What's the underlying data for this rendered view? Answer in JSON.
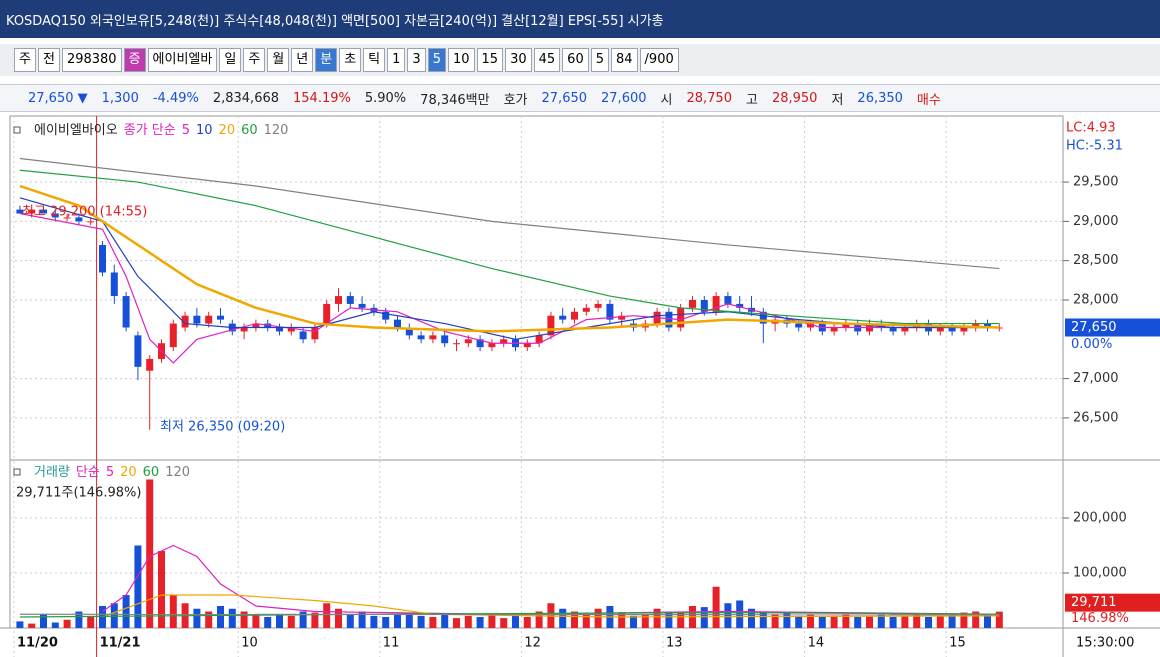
{
  "title_bar": {
    "text": "KOSDAQ150 외국인보유[5,248(천)] 주식수[48,048(천)] 액면[500] 자본금[240(억)] 결산[12월] EPS[-55] 시가총"
  },
  "toolbar": {
    "items": [
      "주",
      "전",
      "298380",
      "증",
      "에이비엘바",
      "일",
      "주",
      "월",
      "년",
      "분",
      "초",
      "틱",
      "1",
      "3",
      "5",
      "10",
      "15",
      "30",
      "45",
      "60",
      "5",
      "84",
      "/900"
    ]
  },
  "quote_bar": {
    "items": [
      "27,650 ▼",
      "1,300",
      "-4.49%",
      "2,834,668",
      "154.19%",
      "5.90%",
      "78,346백만",
      "호가",
      "27,650",
      "27,600",
      "시",
      "28,750",
      "고",
      "28,950",
      "저",
      "26,350",
      "매수"
    ]
  },
  "price_chart": {
    "type": "candlestick",
    "name": "에이비엘바이오",
    "ma_label": "종가 단순",
    "ylim": [
      25990,
      30315
    ],
    "yticks": [
      {
        "value": 29500,
        "label": "29,500"
      },
      {
        "value": 29000,
        "label": "29,000"
      },
      {
        "value": 28500,
        "label": "28,500"
      },
      {
        "value": 28000,
        "label": "28,000"
      },
      {
        "value": 27000,
        "label": "27,000"
      },
      {
        "value": 26500,
        "label": "26,500"
      }
    ],
    "lc": "LC:4.93",
    "hc": "HC:-5.31",
    "current": {
      "value": 27650,
      "label": "27,650"
    },
    "current_change": "0.00%",
    "up_color": "#e8202a",
    "down_color": "#1650d8",
    "high_note": "최고 29,200 (14:55)",
    "low_note": "최저 26,350 (09:20)",
    "candles": [
      [
        29150,
        29200,
        29100,
        29100
      ],
      [
        29100,
        29150,
        29050,
        29150
      ],
      [
        29150,
        29200,
        29100,
        29100
      ],
      [
        29100,
        29150,
        29000,
        29050
      ],
      [
        29050,
        29100,
        29000,
        29050
      ],
      [
        29050,
        29100,
        28950,
        29000
      ],
      [
        29000,
        29050,
        28950,
        29000
      ],
      [
        28700,
        28750,
        28300,
        28350
      ],
      [
        28350,
        28450,
        27950,
        28050
      ],
      [
        28050,
        28100,
        27600,
        27650
      ],
      [
        27550,
        27600,
        26980,
        27150
      ],
      [
        27100,
        27300,
        26350,
        27250
      ],
      [
        27250,
        27500,
        27200,
        27450
      ],
      [
        27400,
        27750,
        27350,
        27700
      ],
      [
        27650,
        27850,
        27600,
        27800
      ],
      [
        27800,
        27900,
        27650,
        27700
      ],
      [
        27700,
        27850,
        27650,
        27800
      ],
      [
        27800,
        27900,
        27700,
        27750
      ],
      [
        27700,
        27750,
        27550,
        27600
      ],
      [
        27600,
        27700,
        27500,
        27650
      ],
      [
        27650,
        27750,
        27600,
        27700
      ],
      [
        27700,
        27750,
        27600,
        27650
      ],
      [
        27650,
        27700,
        27550,
        27600
      ],
      [
        27600,
        27700,
        27550,
        27650
      ],
      [
        27600,
        27650,
        27450,
        27500
      ],
      [
        27500,
        27700,
        27450,
        27650
      ],
      [
        27700,
        28000,
        27650,
        27950
      ],
      [
        27950,
        28150,
        27850,
        28050
      ],
      [
        28050,
        28100,
        27900,
        27950
      ],
      [
        27950,
        28050,
        27850,
        27900
      ],
      [
        27900,
        27950,
        27800,
        27850
      ],
      [
        27850,
        27900,
        27700,
        27750
      ],
      [
        27750,
        27800,
        27600,
        27650
      ],
      [
        27650,
        27700,
        27500,
        27550
      ],
      [
        27550,
        27600,
        27450,
        27500
      ],
      [
        27500,
        27600,
        27450,
        27550
      ],
      [
        27550,
        27600,
        27400,
        27450
      ],
      [
        27450,
        27500,
        27350,
        27450
      ],
      [
        27450,
        27550,
        27400,
        27500
      ],
      [
        27500,
        27550,
        27350,
        27400
      ],
      [
        27400,
        27500,
        27350,
        27450
      ],
      [
        27450,
        27550,
        27400,
        27500
      ],
      [
        27500,
        27550,
        27350,
        27400
      ],
      [
        27400,
        27500,
        27350,
        27450
      ],
      [
        27450,
        27600,
        27400,
        27550
      ],
      [
        27550,
        27850,
        27500,
        27800
      ],
      [
        27800,
        27900,
        27700,
        27750
      ],
      [
        27750,
        27900,
        27700,
        27850
      ],
      [
        27850,
        27950,
        27800,
        27900
      ],
      [
        27900,
        28000,
        27850,
        27950
      ],
      [
        27950,
        28000,
        27700,
        27750
      ],
      [
        27750,
        27850,
        27650,
        27800
      ],
      [
        27700,
        27750,
        27600,
        27650
      ],
      [
        27650,
        27750,
        27600,
        27700
      ],
      [
        27700,
        27900,
        27650,
        27850
      ],
      [
        27850,
        27900,
        27600,
        27650
      ],
      [
        27650,
        27950,
        27600,
        27900
      ],
      [
        27900,
        28050,
        27850,
        28000
      ],
      [
        28000,
        28050,
        27800,
        27850
      ],
      [
        27850,
        28100,
        27800,
        28050
      ],
      [
        28050,
        28100,
        27900,
        27950
      ],
      [
        27950,
        28050,
        27850,
        27900
      ],
      [
        27900,
        28050,
        27800,
        27850
      ],
      [
        27850,
        27900,
        27450,
        27700
      ],
      [
        27700,
        27800,
        27600,
        27750
      ],
      [
        27750,
        27800,
        27650,
        27700
      ],
      [
        27700,
        27750,
        27600,
        27650
      ],
      [
        27650,
        27750,
        27600,
        27700
      ],
      [
        27700,
        27750,
        27550,
        27600
      ],
      [
        27600,
        27700,
        27550,
        27650
      ],
      [
        27650,
        27750,
        27600,
        27700
      ],
      [
        27700,
        27750,
        27550,
        27600
      ],
      [
        27600,
        27750,
        27550,
        27700
      ],
      [
        27700,
        27750,
        27600,
        27650
      ],
      [
        27650,
        27700,
        27550,
        27600
      ],
      [
        27600,
        27700,
        27550,
        27650
      ],
      [
        27650,
        27750,
        27600,
        27700
      ],
      [
        27700,
        27750,
        27550,
        27600
      ],
      [
        27600,
        27700,
        27550,
        27650
      ],
      [
        27650,
        27700,
        27550,
        27600
      ],
      [
        27600,
        27700,
        27550,
        27650
      ],
      [
        27650,
        27750,
        27600,
        27700
      ],
      [
        27700,
        27750,
        27600,
        27650
      ],
      [
        27650,
        27700,
        27600,
        27650
      ]
    ],
    "ma": [
      {
        "name": "5",
        "color": "#e020c0",
        "x": [
          0,
          7,
          9,
          11,
          13,
          15,
          20,
          25,
          28,
          32,
          36,
          40,
          44,
          48,
          52,
          56,
          60,
          64,
          68,
          74,
          83
        ],
        "values": [
          29100,
          28900,
          28300,
          27500,
          27200,
          27500,
          27700,
          27600,
          27900,
          27850,
          27600,
          27450,
          27450,
          27750,
          27800,
          27750,
          27950,
          27800,
          27650,
          27650,
          27650
        ]
      },
      {
        "name": "10",
        "color": "#2040c0",
        "x": [
          0,
          7,
          10,
          14,
          18,
          25,
          30,
          36,
          42,
          48,
          54,
          60,
          66,
          74,
          83
        ],
        "values": [
          29300,
          29000,
          28300,
          27700,
          27650,
          27650,
          27850,
          27700,
          27500,
          27650,
          27800,
          27850,
          27750,
          27650,
          27650
        ]
      },
      {
        "name": "20",
        "color": "#f0a800",
        "x": [
          0,
          5,
          10,
          15,
          20,
          25,
          30,
          40,
          50,
          60,
          70,
          83
        ],
        "values": [
          29450,
          29200,
          28700,
          28200,
          27900,
          27700,
          27650,
          27600,
          27650,
          27750,
          27700,
          27650
        ]
      },
      {
        "name": "60",
        "color": "#20a040",
        "x": [
          0,
          10,
          20,
          30,
          40,
          50,
          56,
          65,
          75,
          83
        ],
        "values": [
          29650,
          29500,
          29200,
          28800,
          28400,
          28050,
          27900,
          27800,
          27700,
          27700
        ]
      },
      {
        "name": "120",
        "color": "#808080",
        "x": [
          0,
          20,
          40,
          60,
          83
        ],
        "values": [
          29800,
          29450,
          29000,
          28700,
          28400
        ]
      }
    ]
  },
  "volume_chart": {
    "type": "bar",
    "name": "거래량",
    "ma_label": "단순",
    "info": "29,711주(146.98%)",
    "ylim": [
      0,
      301800
    ],
    "yticks": [
      {
        "value": 200000,
        "label": "200,000"
      },
      {
        "value": 100000,
        "label": "100,000"
      }
    ],
    "current": {
      "value": 29711,
      "label": "29,711"
    },
    "current_ratio": "146.98%",
    "values": [
      12000,
      8000,
      25000,
      10000,
      15000,
      30000,
      20000,
      40000,
      45000,
      60000,
      150000,
      270000,
      140000,
      60000,
      45000,
      35000,
      30000,
      40000,
      35000,
      30000,
      25000,
      20000,
      25000,
      22000,
      30000,
      28000,
      45000,
      35000,
      25000,
      30000,
      22000,
      20000,
      25000,
      28000,
      22000,
      20000,
      25000,
      18000,
      22000,
      20000,
      25000,
      18000,
      22000,
      20000,
      30000,
      45000,
      35000,
      30000,
      25000,
      35000,
      40000,
      28000,
      22000,
      25000,
      35000,
      30000,
      28000,
      40000,
      38000,
      75000,
      45000,
      50000,
      35000,
      30000,
      25000,
      28000,
      22000,
      25000,
      20000,
      22000,
      25000,
      20000,
      22000,
      25000,
      20000,
      22000,
      25000,
      20000,
      22000,
      25000,
      28000,
      30000,
      25000,
      29711
    ],
    "ma": [
      {
        "name": "5",
        "color": "#e020c0",
        "x": [
          7,
          9,
          11,
          13,
          15,
          17,
          20,
          25,
          40,
          60,
          83
        ],
        "values": [
          30000,
          60000,
          130000,
          150000,
          130000,
          80000,
          40000,
          30000,
          25000,
          30000,
          25000
        ]
      },
      {
        "name": "20",
        "color": "#f0a800",
        "x": [
          7,
          12,
          18,
          25,
          30,
          35,
          50,
          83
        ],
        "values": [
          20000,
          60000,
          60000,
          50000,
          40000,
          25000,
          20000,
          22000
        ]
      },
      {
        "name": "60",
        "color": "#20a040",
        "x": [
          0,
          30,
          60,
          83
        ],
        "values": [
          20000,
          25000,
          28000,
          25000
        ]
      },
      {
        "name": "120",
        "color": "#808080",
        "x": [
          0,
          83
        ],
        "values": [
          25000,
          24000
        ]
      }
    ]
  },
  "x_axis": {
    "categories": [
      "11/20",
      null,
      null,
      null,
      null,
      null,
      null,
      "11/21",
      null,
      null,
      null,
      null,
      null,
      null,
      null,
      null,
      null,
      null,
      null,
      "10",
      null,
      null,
      null,
      null,
      null,
      null,
      null,
      null,
      null,
      null,
      null,
      "11",
      null,
      null,
      null,
      null,
      null,
      null,
      null,
      null,
      null,
      null,
      null,
      "12",
      null,
      null,
      null,
      null,
      null,
      null,
      null,
      null,
      null,
      null,
      null,
      "13",
      null,
      null,
      null,
      null,
      null,
      null,
      null,
      null,
      null,
      null,
      null,
      "14",
      null,
      null,
      null,
      null,
      null,
      null,
      null,
      null,
      null,
      null,
      null,
      "15",
      null,
      null,
      null,
      null
    ],
    "end_time": "15:30:00"
  }
}
